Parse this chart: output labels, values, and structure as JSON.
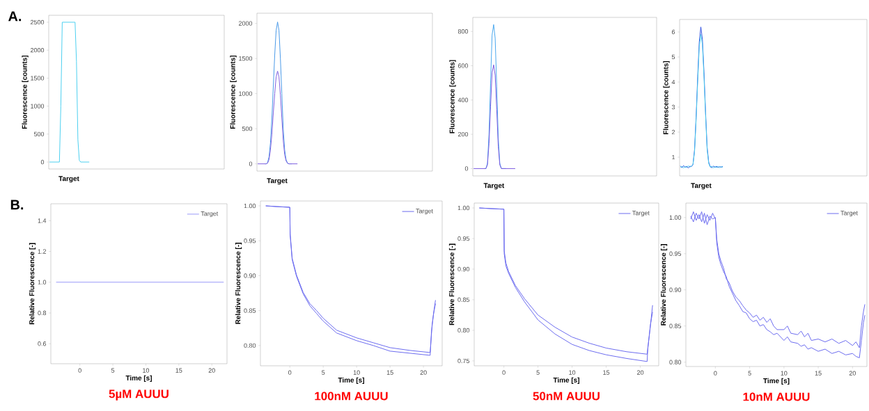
{
  "chart_data": [
    {
      "type": "line",
      "xlabel": "Target",
      "ylabel": "Fluorescence [counts]",
      "annotations": [
        "A."
      ],
      "marker": "none",
      "tick_labels": "y",
      "ylim": [
        -124,
        2624
      ],
      "yticks": [
        {
          "value": 0,
          "label": "0"
        },
        500,
        1000,
        1500,
        2000,
        2500
      ],
      "categories": [
        null,
        null,
        null,
        null,
        null,
        null,
        null,
        null,
        null,
        null,
        null,
        null,
        null,
        null,
        null,
        null,
        null,
        null,
        null,
        null,
        null,
        null,
        null,
        null,
        null,
        null,
        null,
        null,
        null
      ],
      "series": [
        {
          "color": "#4cd0f0",
          "values": [
            0,
            0,
            0,
            0,
            0,
            0,
            0,
            0,
            1000,
            2500,
            2500,
            2500,
            2500,
            2500,
            2500,
            2500,
            2500,
            2500,
            2500,
            1800,
            400,
            30,
            0,
            0,
            0,
            0,
            0,
            0,
            0
          ]
        }
      ]
    },
    {
      "type": "line",
      "xlabel": "Target",
      "ylabel": "Fluorescence [counts]",
      "marker": "none",
      "tick_labels": "y",
      "ylim": [
        -103,
        2145
      ],
      "yticks": [
        {
          "value": 0,
          "label": "0"
        },
        500,
        1000,
        1500,
        2000
      ],
      "categories": [
        null,
        null,
        null,
        null,
        null,
        null,
        null,
        null,
        null,
        null,
        null,
        null,
        null,
        null,
        null,
        null,
        null,
        null,
        null,
        null,
        null,
        null,
        null,
        null,
        null,
        null,
        null,
        null,
        null
      ],
      "series": [
        {
          "color": "#4a9ae8",
          "values": [
            null,
            null,
            null,
            null,
            null,
            0,
            0,
            20,
            100,
            300,
            650,
            1100,
            1550,
            1900,
            2020,
            1900,
            1500,
            1000,
            500,
            200,
            60,
            10,
            0,
            0,
            0,
            null,
            null,
            null,
            null
          ]
        },
        {
          "color": "#8060e0",
          "values": [
            0,
            0,
            0,
            0,
            0,
            0,
            0,
            10,
            60,
            200,
            420,
            720,
            1000,
            1240,
            1320,
            1240,
            980,
            650,
            330,
            130,
            40,
            10,
            0,
            0,
            0,
            0,
            0,
            0,
            0
          ]
        }
      ]
    },
    {
      "type": "line",
      "xlabel": "Target",
      "ylabel": "Fluorescence [counts]",
      "marker": "none",
      "tick_labels": "y",
      "ylim": [
        -43,
        882
      ],
      "yticks": [
        {
          "value": 0,
          "label": "0"
        },
        200,
        400,
        600,
        800
      ],
      "categories": [
        null,
        null,
        null,
        null,
        null,
        null,
        null,
        null,
        null,
        null,
        null,
        null,
        null,
        null,
        null,
        null,
        null,
        null,
        null,
        null,
        null,
        null,
        null,
        null,
        null,
        null,
        null,
        null
      ],
      "series": [
        {
          "color": "#4aa8ee",
          "values": [
            null,
            null,
            null,
            null,
            null,
            null,
            null,
            0,
            0,
            30,
            200,
            500,
            780,
            840,
            760,
            480,
            180,
            30,
            0,
            0,
            0,
            0,
            null,
            null,
            null,
            null,
            null,
            null
          ]
        },
        {
          "color": "#7a5ae0",
          "values": [
            0,
            0,
            0,
            0,
            0,
            0,
            0,
            0,
            0,
            22,
            145,
            360,
            560,
            605,
            545,
            345,
            130,
            22,
            0,
            0,
            0,
            0,
            0,
            0,
            0,
            0,
            0,
            0
          ]
        }
      ]
    },
    {
      "type": "line",
      "xlabel": "Target",
      "ylabel": "Fluorescence [counts]",
      "marker": "none",
      "tick_labels": "y",
      "ylim": [
        0.25,
        6.5
      ],
      "yticks": [
        1,
        2,
        3,
        4,
        5,
        6
      ],
      "categories": [
        null,
        null,
        null,
        null,
        null,
        null,
        null,
        null,
        null,
        null,
        null,
        null,
        null,
        null,
        null,
        null,
        null,
        null,
        null,
        null,
        null,
        null,
        null,
        null,
        null,
        null,
        null,
        null
      ],
      "series": [
        {
          "color": "#3050e0",
          "values": [
            0.65,
            0.58,
            0.66,
            0.6,
            0.63,
            0.57,
            0.64,
            0.62,
            0.7,
            1.3,
            2.6,
            4.2,
            5.6,
            6.2,
            5.7,
            4.4,
            2.8,
            1.4,
            0.8,
            0.62,
            0.58,
            0.64,
            0.6,
            0.63,
            0.59,
            0.62,
            0.6,
            0.63
          ]
        },
        {
          "color": "#50d0ee",
          "values": [
            0.6,
            0.63,
            0.57,
            0.62,
            0.59,
            0.66,
            0.6,
            0.64,
            0.72,
            1.2,
            2.5,
            4.0,
            5.4,
            5.9,
            5.5,
            4.2,
            2.7,
            1.3,
            0.75,
            0.6,
            0.64,
            0.57,
            0.62,
            0.59,
            0.63,
            0.58,
            0.62,
            0.6
          ]
        }
      ]
    },
    {
      "type": "line",
      "title": "5µM AUUU",
      "xlabel": "Time [s]",
      "ylabel": "Relative Fluorescence [-]",
      "annotations": [
        "B."
      ],
      "marker": "none",
      "legend": "top right",
      "xlim": [
        -4.4,
        22.3
      ],
      "xticks": [
        0,
        5,
        10,
        15,
        20
      ],
      "ylim": [
        0.47,
        1.51
      ],
      "yticks": [
        0.6,
        0.8,
        {
          "value": 1,
          "label": "1.0"
        },
        1.2,
        1.4
      ],
      "series": [
        {
          "name": "Target",
          "color": "#9a9af8",
          "x": [
            -3.6,
            21.8
          ],
          "values": [
            1,
            1
          ]
        }
      ]
    },
    {
      "type": "line",
      "title": "100nM AUUU",
      "xlabel": "Time [s]",
      "ylabel": "Relative Fluorescence [-]",
      "marker": "none",
      "legend": "top right",
      "xlim": [
        -4.4,
        22.8
      ],
      "xticks": [
        0,
        5,
        10,
        15,
        20
      ],
      "ylim": [
        0.771,
        1.007
      ],
      "yticks": [
        {
          "value": 0.8,
          "label": "0.80"
        },
        0.85,
        {
          "value": 0.9,
          "label": "0.90"
        },
        0.95,
        {
          "value": 1,
          "label": "1.00"
        }
      ],
      "series": [
        {
          "name": "Target",
          "color": "#6b6bef",
          "x": [
            -3.6,
            -2,
            0,
            0.05,
            0.35,
            1,
            2,
            3,
            4,
            5,
            7,
            10,
            12.5,
            15,
            18,
            21,
            21.3,
            21.6,
            21.8
          ],
          "values": [
            1,
            0.999,
            0.998,
            0.96,
            0.925,
            0.901,
            0.876,
            0.86,
            0.85,
            0.839,
            0.822,
            0.811,
            0.804,
            0.797,
            0.793,
            0.79,
            0.83,
            0.852,
            0.865
          ]
        },
        {
          "color": "#6b6bef",
          "x": [
            -3.6,
            -2,
            0,
            0.05,
            0.35,
            1,
            2,
            3,
            4,
            5,
            7,
            10,
            12.5,
            15,
            18,
            21,
            21.2,
            21.5,
            21.8
          ],
          "values": [
            1,
            0.999,
            0.998,
            0.958,
            0.923,
            0.899,
            0.874,
            0.857,
            0.846,
            0.835,
            0.818,
            0.807,
            0.8,
            0.792,
            0.789,
            0.786,
            0.82,
            0.845,
            0.86
          ]
        }
      ]
    },
    {
      "type": "line",
      "title": "50nM AUUU",
      "xlabel": "Time [s]",
      "ylabel": "Relative Fluorescence [-]",
      "marker": "none",
      "legend": "top right",
      "xlim": [
        -4.35,
        22.7
      ],
      "xticks": [
        0,
        5,
        10,
        15,
        20
      ],
      "ylim": [
        0.742,
        1.008
      ],
      "yticks": [
        0.75,
        {
          "value": 0.8,
          "label": "0.80"
        },
        0.85,
        {
          "value": 0.9,
          "label": "0.90"
        },
        0.95,
        {
          "value": 1,
          "label": "1.00"
        }
      ],
      "series": [
        {
          "name": "Target",
          "color": "#6b6bef",
          "x": [
            -3.6,
            -2,
            0,
            0.05,
            0.3,
            0.7,
            1.7,
            3,
            5,
            7.5,
            10,
            12.5,
            15,
            18,
            21,
            21.3,
            21.6,
            21.8
          ],
          "values": [
            1,
            0.999,
            0.998,
            0.93,
            0.91,
            0.896,
            0.873,
            0.852,
            0.825,
            0.805,
            0.789,
            0.779,
            0.771,
            0.765,
            0.761,
            0.79,
            0.82,
            0.841
          ]
        },
        {
          "color": "#6b6bef",
          "x": [
            -3.6,
            -2,
            0,
            0.05,
            0.3,
            0.7,
            1.7,
            3,
            5,
            7.5,
            10,
            12.5,
            15,
            18,
            21,
            21.1,
            21.5,
            21.8
          ],
          "values": [
            1,
            0.999,
            0.998,
            0.925,
            0.905,
            0.893,
            0.87,
            0.847,
            0.817,
            0.794,
            0.777,
            0.767,
            0.76,
            0.754,
            0.749,
            0.77,
            0.81,
            0.83
          ]
        }
      ]
    },
    {
      "type": "line",
      "title": "10nM AUUU",
      "xlabel": "Time [s]",
      "ylabel": "Relative Fluorescence [-]",
      "marker": "none",
      "legend": "top right",
      "xlim": [
        -4.3,
        22.1
      ],
      "xticks": [
        0,
        5,
        10,
        15,
        20
      ],
      "ylim": [
        0.794,
        1.02
      ],
      "yticks": [
        {
          "value": 0.8,
          "label": "0.80"
        },
        0.85,
        {
          "value": 0.9,
          "label": "0.90"
        },
        0.95,
        {
          "value": 1,
          "label": "1.00"
        }
      ],
      "series": [
        {
          "name": "Target",
          "color": "#6b6bef",
          "x": [
            -3.6,
            -3.2,
            -2.8,
            -2.4,
            -2.0,
            -1.6,
            -1.2,
            -0.8,
            -0.4,
            0,
            0.2,
            0.5,
            0.8,
            1.2,
            1.6,
            2.0,
            2.5,
            3,
            3.5,
            4,
            4.5,
            5,
            5.5,
            6,
            6.5,
            7,
            7.5,
            8,
            8.5,
            9,
            10,
            10.5,
            11,
            12,
            12.5,
            13,
            13.5,
            14,
            15,
            16,
            17,
            18,
            19,
            20,
            20.5,
            21,
            21.3,
            21.6,
            21.8
          ],
          "values": [
            1.002,
            0.994,
            1.006,
            0.998,
            1.008,
            0.992,
            1.004,
            0.996,
            1.006,
            0.998,
            0.97,
            0.95,
            0.94,
            0.93,
            0.915,
            0.91,
            0.898,
            0.89,
            0.885,
            0.878,
            0.872,
            0.868,
            0.862,
            0.865,
            0.858,
            0.862,
            0.855,
            0.86,
            0.85,
            0.845,
            0.845,
            0.85,
            0.84,
            0.838,
            0.843,
            0.835,
            0.84,
            0.83,
            0.832,
            0.828,
            0.832,
            0.826,
            0.83,
            0.823,
            0.828,
            0.82,
            0.85,
            0.87,
            0.88
          ]
        },
        {
          "color": "#6b6bef",
          "x": [
            -3.6,
            -3.2,
            -2.8,
            -2.4,
            -2.0,
            -1.6,
            -1.2,
            -0.8,
            -0.4,
            0,
            0.2,
            0.5,
            0.8,
            1.2,
            1.6,
            2,
            2.5,
            3,
            3.5,
            4,
            4.5,
            5,
            5.5,
            6,
            6.5,
            7,
            7.5,
            8,
            8.5,
            9,
            10,
            10.5,
            11,
            12,
            12.5,
            13,
            13.5,
            14,
            15,
            16,
            17,
            18,
            19,
            20,
            20.5,
            21,
            21.3,
            21.6,
            21.8
          ],
          "values": [
            0.998,
            1.008,
            0.996,
            1.004,
            0.994,
            1.006,
            0.99,
            1.002,
            0.998,
            1.0,
            0.965,
            0.945,
            0.935,
            0.925,
            0.918,
            0.905,
            0.895,
            0.885,
            0.878,
            0.87,
            0.868,
            0.86,
            0.856,
            0.858,
            0.85,
            0.852,
            0.845,
            0.842,
            0.838,
            0.84,
            0.83,
            0.835,
            0.828,
            0.826,
            0.822,
            0.824,
            0.818,
            0.82,
            0.815,
            0.818,
            0.812,
            0.815,
            0.81,
            0.812,
            0.808,
            0.806,
            0.83,
            0.855,
            0.865
          ]
        }
      ]
    }
  ]
}
